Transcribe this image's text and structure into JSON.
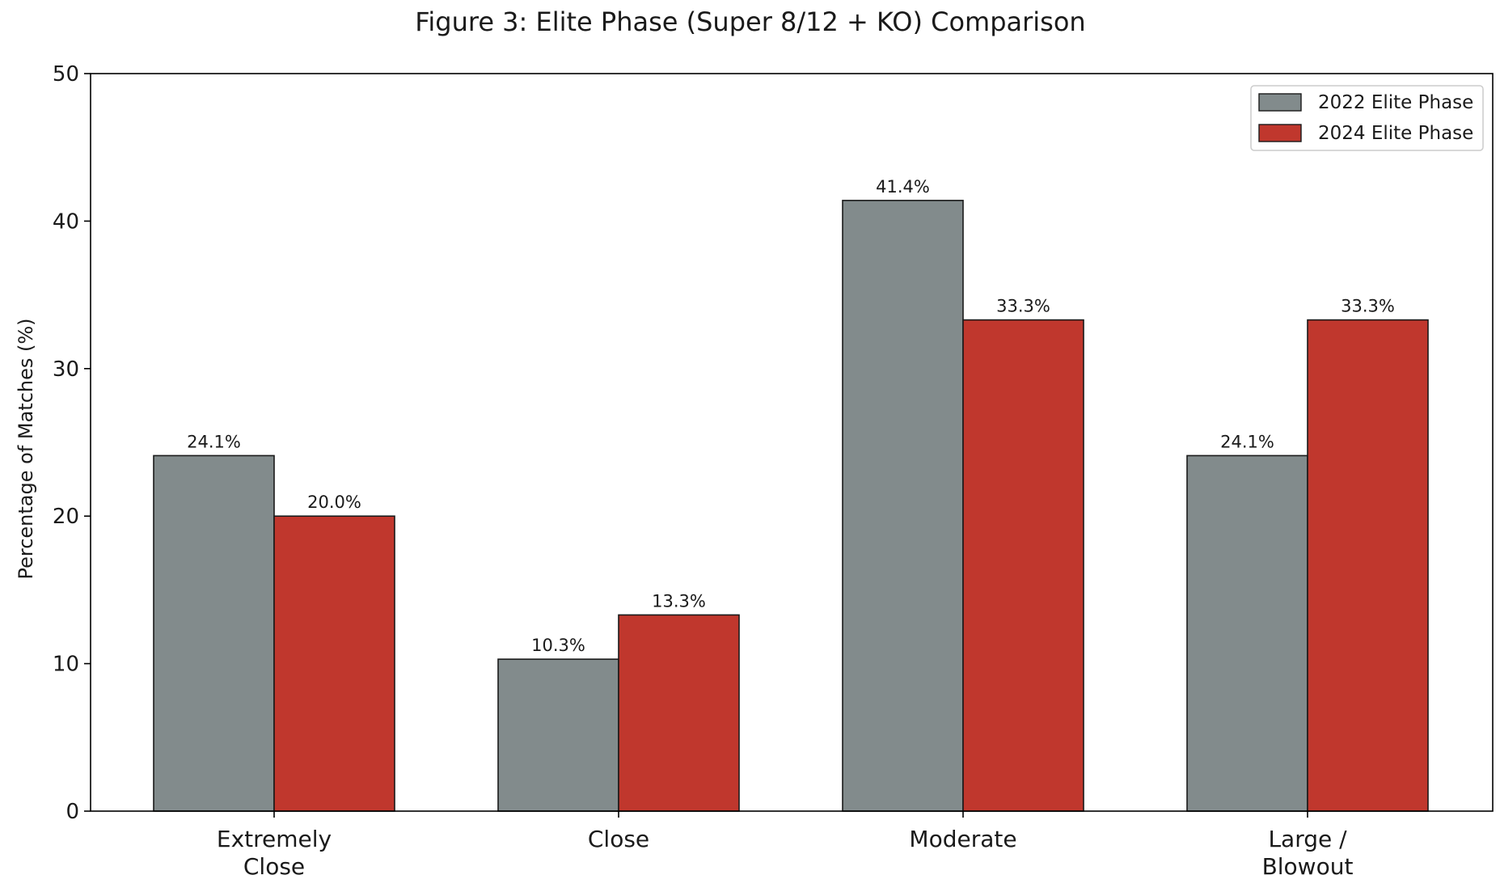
{
  "chart_data": {
    "type": "bar",
    "title": "Figure 3: Elite Phase (Super 8/12 + KO) Comparison",
    "xlabel": "",
    "ylabel": "Percentage of Matches (%)",
    "ylim": [
      0,
      50
    ],
    "yticks": [
      "0",
      "10",
      "20",
      "30",
      "40",
      "50"
    ],
    "categories": [
      [
        "Extremely",
        "Close"
      ],
      [
        "Close"
      ],
      [
        "Moderate"
      ],
      [
        "Large /",
        "Blowout"
      ]
    ],
    "series": [
      {
        "name": "2022 Elite Phase",
        "color": "#828b8c",
        "values": [
          24.1,
          10.3,
          41.4,
          24.1
        ],
        "labels": [
          "24.1%",
          "10.3%",
          "41.4%",
          "24.1%"
        ]
      },
      {
        "name": "2024 Elite Phase",
        "color": "#c0372d",
        "values": [
          20.0,
          13.3,
          33.3,
          33.3
        ],
        "labels": [
          "20.0%",
          "13.3%",
          "33.3%",
          "33.3%"
        ]
      }
    ],
    "legend_position": "top-right",
    "grid": false
  }
}
